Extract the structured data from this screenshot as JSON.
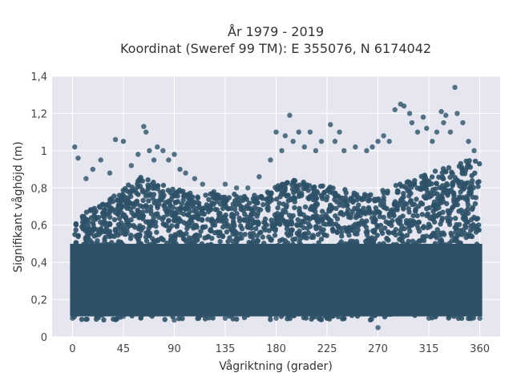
{
  "chart_data": {
    "type": "scatter",
    "title": [
      "År 1979 - 2019",
      "Koordinat (Sweref 99 TM): E 355076, N 6174042"
    ],
    "xlabel": "Vågriktning (grader)",
    "ylabel": "Signifikant våghöjd (m)",
    "xlim": [
      -18,
      378
    ],
    "ylim": [
      0,
      1.4
    ],
    "x_ticks": [
      0,
      45,
      90,
      135,
      180,
      225,
      270,
      315,
      360
    ],
    "x_tick_labels": [
      "0",
      "45",
      "90",
      "135",
      "180",
      "225",
      "270",
      "315",
      "360"
    ],
    "y_ticks": [
      0,
      0.2,
      0.4,
      0.6,
      0.8,
      1.0,
      1.2,
      1.4
    ],
    "y_tick_labels": [
      "0",
      "0,2",
      "0,4",
      "0,6",
      "0,8",
      "1",
      "1,2",
      "1,4"
    ],
    "grid": true,
    "marker_color": "#2e5168",
    "background_color": "#e5e6ef",
    "series": [
      {
        "x": [
          2,
          5,
          12,
          18,
          25,
          33,
          38,
          45,
          52,
          58,
          63,
          65,
          68,
          72,
          75,
          80,
          85,
          90,
          95,
          100,
          108,
          115,
          125,
          135,
          145,
          155,
          165,
          175,
          180,
          185,
          188,
          192,
          195,
          200,
          205,
          210,
          215,
          220,
          228,
          232,
          236,
          240,
          250,
          260,
          265,
          270,
          275,
          280,
          285,
          290,
          293,
          298,
          300,
          305,
          310,
          313,
          318,
          322,
          326,
          328,
          330,
          334,
          338,
          340,
          345,
          350,
          355,
          0,
          3,
          45,
          90,
          135,
          180,
          225,
          270,
          315,
          360,
          20,
          60,
          110,
          160,
          200,
          250,
          300,
          350
        ],
        "y": [
          1.02,
          0.96,
          0.85,
          0.9,
          0.95,
          0.88,
          1.06,
          1.05,
          0.92,
          0.98,
          1.13,
          1.1,
          1.0,
          0.95,
          1.02,
          1.0,
          0.95,
          0.98,
          0.9,
          0.88,
          0.85,
          0.82,
          0.78,
          0.82,
          0.8,
          0.8,
          0.86,
          0.95,
          1.1,
          1.0,
          1.08,
          1.19,
          1.05,
          1.1,
          1.02,
          1.1,
          1.0,
          1.05,
          1.14,
          1.05,
          1.1,
          1.0,
          1.02,
          1.0,
          1.02,
          1.05,
          1.08,
          1.05,
          1.22,
          1.25,
          1.24,
          1.2,
          1.15,
          1.1,
          1.18,
          1.12,
          1.05,
          1.1,
          1.21,
          1.15,
          1.19,
          1.1,
          1.34,
          1.2,
          1.15,
          1.05,
          1.0,
          0.1,
          0.12,
          0.11,
          0.09,
          0.1,
          0.1,
          0.1,
          0.05,
          0.1,
          0.1,
          0.5,
          0.5,
          0.45,
          0.5,
          0.55,
          0.5,
          0.6,
          0.55
        ]
      }
    ]
  }
}
